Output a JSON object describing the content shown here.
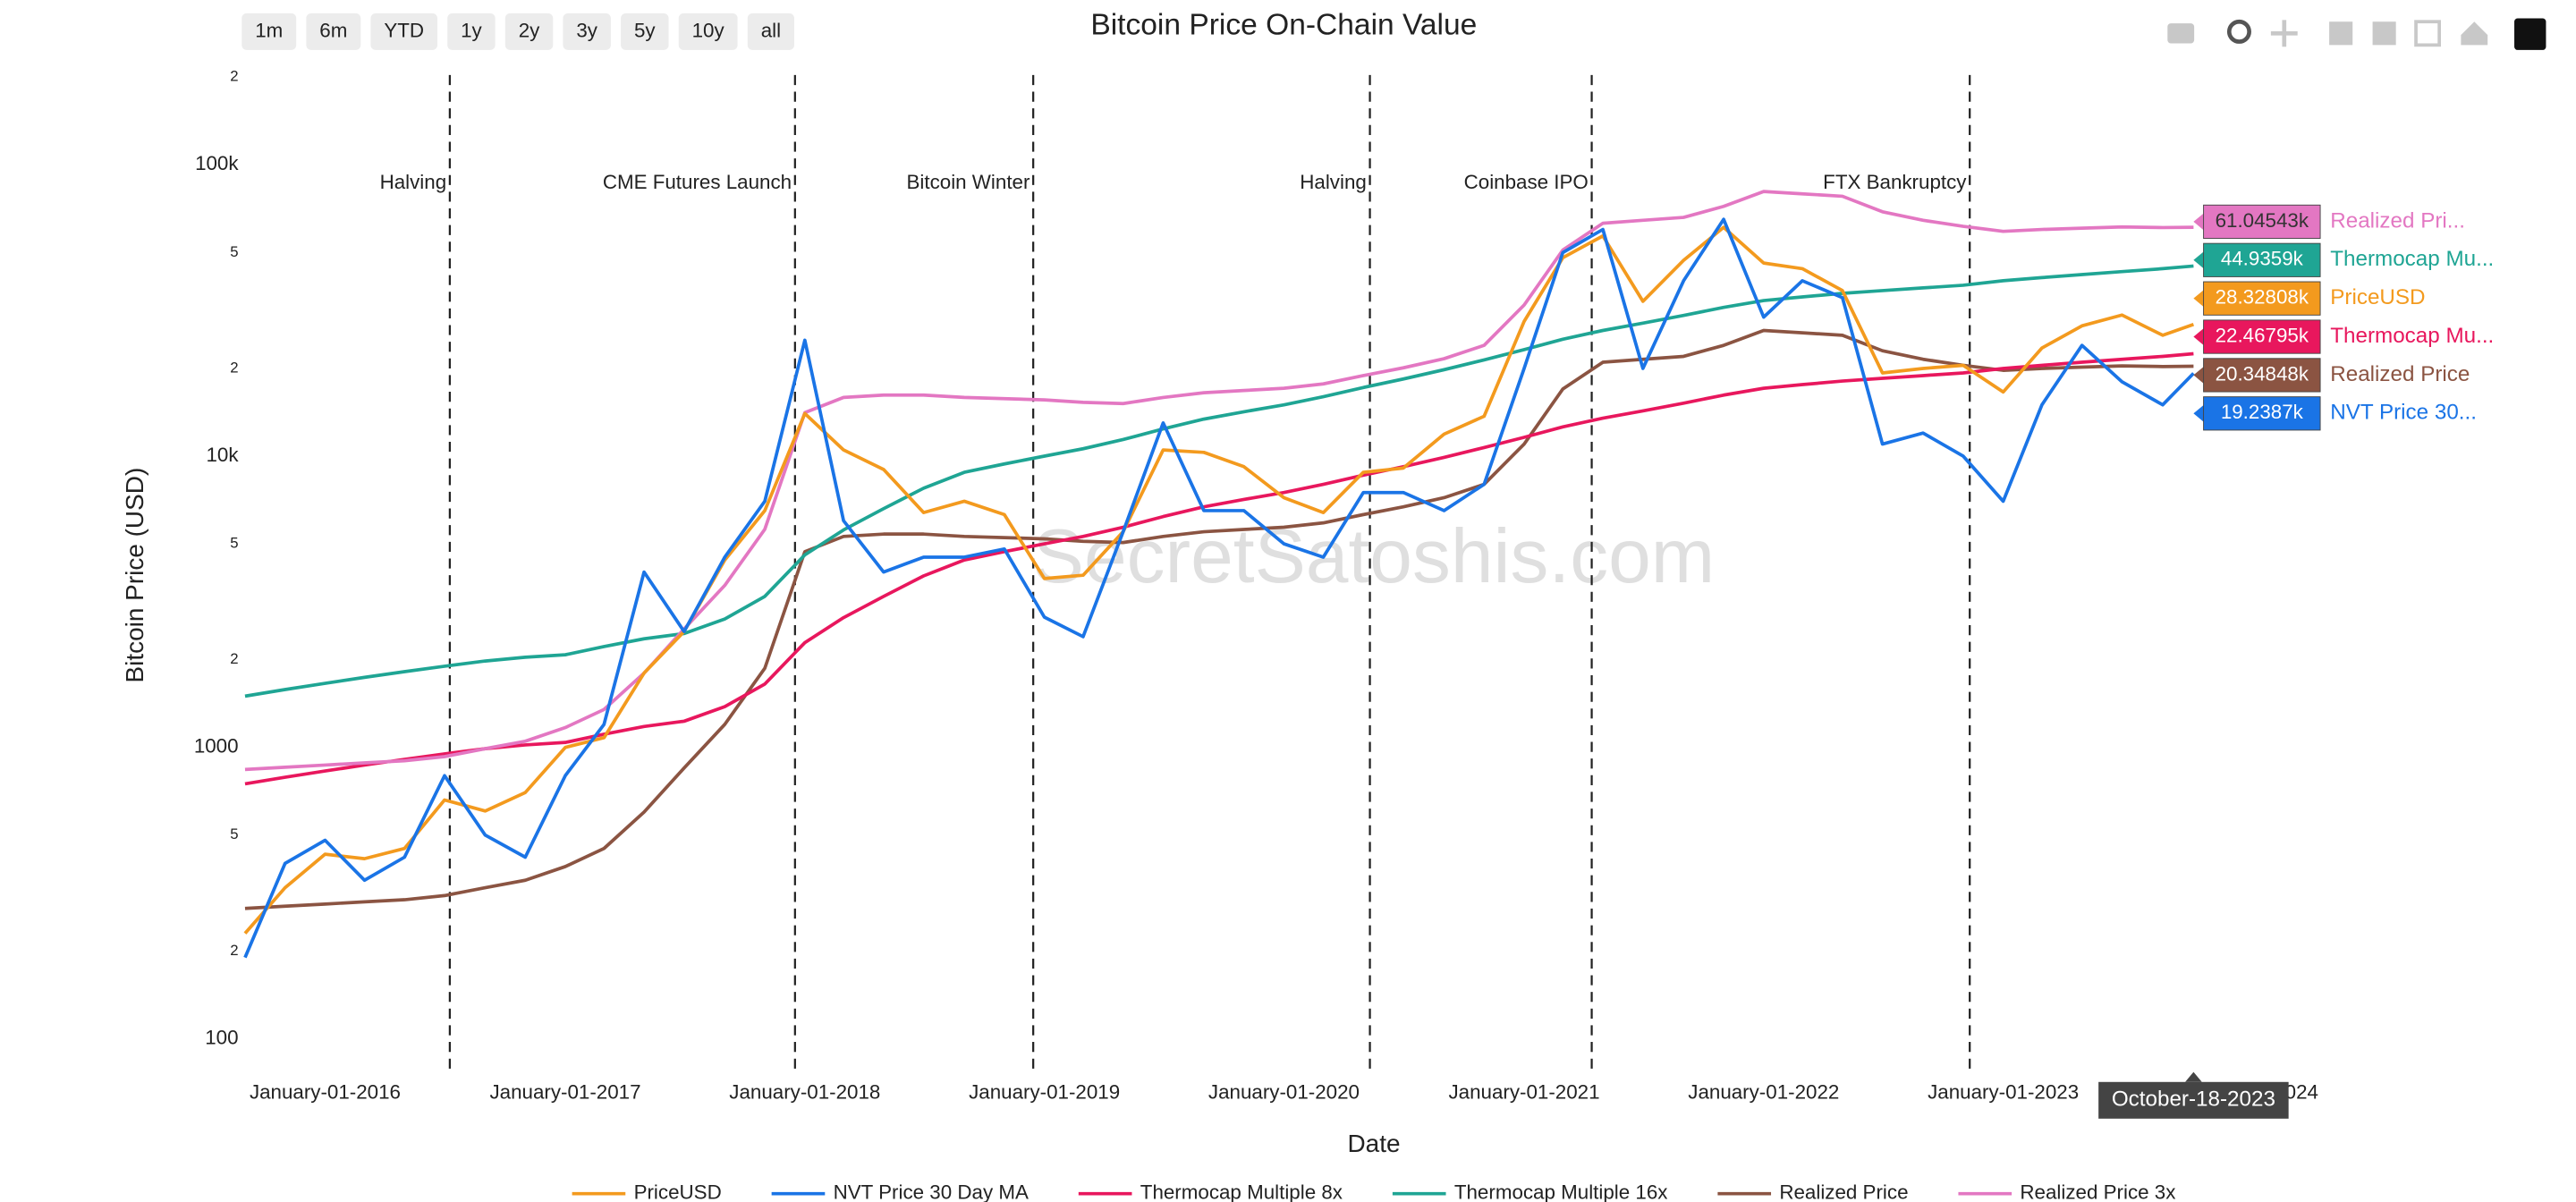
{
  "chart_data": {
    "type": "line",
    "title": "Bitcoin Price On-Chain Value",
    "x_label": "Date",
    "y_label": "Bitcoin Price (USD)",
    "watermark": "SecretSatoshis.com",
    "range_buttons": [
      "1m",
      "6m",
      "YTD",
      "1y",
      "2y",
      "3y",
      "5y",
      "10y",
      "all"
    ],
    "log_y": true,
    "grid": false,
    "legend_position": "bottom",
    "xlim": [
      "2015-08-27",
      "2024-04-24"
    ],
    "ylim": [
      80,
      223000
    ],
    "yticks": [
      100,
      {
        "value": 200,
        "label": "2"
      },
      {
        "value": 500,
        "label": "5"
      },
      1000,
      {
        "value": 2000,
        "label": "2"
      },
      {
        "value": 5000,
        "label": "5"
      },
      {
        "value": 10000,
        "label": "10k"
      },
      {
        "value": 20000,
        "label": "2"
      },
      {
        "value": 50000,
        "label": "5"
      },
      {
        "value": 100000,
        "label": "100k"
      },
      {
        "value": 200000,
        "label": "2"
      }
    ],
    "xticks": [
      {
        "value": "2016-01-01",
        "label": "January-01-2016"
      },
      {
        "value": "2017-01-01",
        "label": "January-01-2017"
      },
      {
        "value": "2018-01-01",
        "label": "January-01-2018"
      },
      {
        "value": "2019-01-01",
        "label": "January-01-2019"
      },
      {
        "value": "2020-01-01",
        "label": "January-01-2020"
      },
      {
        "value": "2021-01-01",
        "label": "January-01-2021"
      },
      {
        "value": "2022-01-01",
        "label": "January-01-2022"
      },
      {
        "value": "2023-01-01",
        "label": "January-01-2023"
      },
      {
        "value": "2024-01-01",
        "label": "January-01-2024"
      }
    ],
    "events": [
      {
        "x": "2016-07-09",
        "label": "Halving"
      },
      {
        "x": "2017-12-17",
        "label": "CME Futures Launch"
      },
      {
        "x": "2018-12-15",
        "label": "Bitcoin Winter"
      },
      {
        "x": "2020-05-11",
        "label": "Halving"
      },
      {
        "x": "2021-04-14",
        "label": "Coinbase IPO"
      },
      {
        "x": "2022-11-11",
        "label": "FTX Bankruptcy"
      }
    ],
    "hover_x_label": "October-18-2023",
    "x": [
      "2015-09-01",
      "2015-11-01",
      "2016-01-01",
      "2016-03-01",
      "2016-05-01",
      "2016-07-01",
      "2016-09-01",
      "2016-11-01",
      "2017-01-01",
      "2017-03-01",
      "2017-05-01",
      "2017-07-01",
      "2017-09-01",
      "2017-11-01",
      "2018-01-01",
      "2018-03-01",
      "2018-05-01",
      "2018-07-01",
      "2018-09-01",
      "2018-11-01",
      "2019-01-01",
      "2019-03-01",
      "2019-05-01",
      "2019-07-01",
      "2019-09-01",
      "2019-11-01",
      "2020-01-01",
      "2020-03-01",
      "2020-05-01",
      "2020-07-01",
      "2020-09-01",
      "2020-11-01",
      "2021-01-01",
      "2021-03-01",
      "2021-05-01",
      "2021-07-01",
      "2021-09-01",
      "2021-11-01",
      "2022-01-01",
      "2022-03-01",
      "2022-05-01",
      "2022-07-01",
      "2022-09-01",
      "2022-11-01",
      "2023-01-01",
      "2023-03-01",
      "2023-05-01",
      "2023-07-01",
      "2023-09-01",
      "2023-10-18"
    ],
    "series": [
      {
        "name": "PriceUSD",
        "color": "#f39a1e",
        "hover_name": "PriceUSD",
        "hover_label": "28.32808k",
        "values": [
          230,
          330,
          430,
          415,
          450,
          660,
          605,
          700,
          1000,
          1080,
          1800,
          2500,
          4400,
          6500,
          14000,
          10500,
          9000,
          6400,
          7000,
          6300,
          3800,
          3900,
          5500,
          10500,
          10300,
          9200,
          7200,
          6400,
          8800,
          9100,
          11900,
          13700,
          29000,
          48000,
          57000,
          34000,
          47000,
          61000,
          46000,
          44000,
          37000,
          19300,
          20000,
          20500,
          16600,
          23500,
          28000,
          30500,
          26000,
          28328.08
        ]
      },
      {
        "name": "NVT Price 30 Day MA",
        "color": "#1a74e6",
        "hover_name": "NVT Price 30...",
        "hover_label": "19.2387k",
        "values": [
          190,
          400,
          480,
          350,
          420,
          800,
          500,
          420,
          800,
          1200,
          4000,
          2500,
          4500,
          7000,
          25000,
          6000,
          4000,
          4500,
          4500,
          4800,
          2800,
          2400,
          5500,
          13000,
          6500,
          6500,
          5000,
          4500,
          7500,
          7500,
          6500,
          8000,
          20000,
          50000,
          60000,
          20000,
          40000,
          65000,
          30000,
          40000,
          35000,
          11000,
          12000,
          10000,
          7000,
          15000,
          24000,
          18000,
          15000,
          19238.7
        ]
      },
      {
        "name": "Thermocap Multiple 8x",
        "color": "#e8175d",
        "hover_name": "Thermocap Mu...",
        "hover_label": "22.46795k",
        "values": [
          750,
          790,
          830,
          870,
          910,
          950,
          990,
          1020,
          1040,
          1110,
          1180,
          1230,
          1380,
          1650,
          2290,
          2790,
          3300,
          3880,
          4400,
          4700,
          5000,
          5300,
          5700,
          6200,
          6700,
          7100,
          7500,
          8000,
          8600,
          9200,
          9900,
          10700,
          11600,
          12600,
          13500,
          14300,
          15200,
          16200,
          17100,
          17600,
          18100,
          18500,
          18900,
          19300,
          20000,
          20500,
          21000,
          21500,
          22000,
          22467.95
        ]
      },
      {
        "name": "Thermocap Multiple 16x",
        "color": "#1fa594",
        "hover_name": "Thermocap Mu...",
        "hover_label": "44.9359k",
        "values": [
          1500,
          1580,
          1660,
          1740,
          1820,
          1900,
          1980,
          2040,
          2080,
          2220,
          2360,
          2460,
          2760,
          3300,
          4580,
          5580,
          6600,
          7760,
          8800,
          9400,
          10000,
          10600,
          11400,
          12400,
          13400,
          14200,
          15000,
          16000,
          17200,
          18400,
          19800,
          21400,
          23200,
          25200,
          27000,
          28600,
          30400,
          32400,
          34200,
          35200,
          36200,
          37000,
          37800,
          38600,
          40000,
          41000,
          42000,
          43000,
          44000,
          44935.9
        ]
      },
      {
        "name": "Realized Price",
        "color": "#8b5442",
        "hover_name": "Realized Price",
        "hover_label": "20.34848k",
        "values": [
          280,
          285,
          290,
          295,
          300,
          310,
          330,
          350,
          390,
          450,
          600,
          850,
          1200,
          1870,
          4700,
          5300,
          5400,
          5400,
          5300,
          5250,
          5200,
          5100,
          5050,
          5300,
          5500,
          5600,
          5700,
          5900,
          6300,
          6700,
          7200,
          8000,
          11000,
          17000,
          21000,
          21500,
          22000,
          24000,
          27000,
          26500,
          26000,
          23000,
          21500,
          20500,
          19700,
          20000,
          20200,
          20400,
          20300,
          20348.48
        ]
      },
      {
        "name": "Realized Price 3x",
        "color": "#e377c2",
        "hover_name": "Realized Pri...",
        "hover_label": "61.04543k",
        "values": [
          840,
          855,
          870,
          885,
          900,
          930,
          990,
          1050,
          1170,
          1350,
          1800,
          2550,
          3600,
          5610,
          14100,
          15900,
          16200,
          16200,
          15900,
          15750,
          15600,
          15300,
          15150,
          15900,
          16500,
          16800,
          17100,
          17700,
          18900,
          20100,
          21600,
          24000,
          33000,
          51000,
          63000,
          64500,
          66000,
          72000,
          81000,
          79500,
          78000,
          69000,
          64500,
          61500,
          59100,
          60000,
          60600,
          61200,
          60900,
          61045.43
        ]
      }
    ]
  }
}
